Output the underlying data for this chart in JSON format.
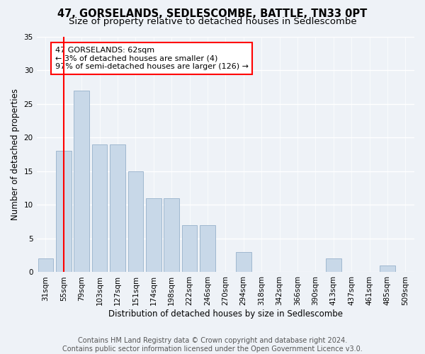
{
  "title": "47, GORSELANDS, SEDLESCOMBE, BATTLE, TN33 0PT",
  "subtitle": "Size of property relative to detached houses in Sedlescombe",
  "xlabel": "Distribution of detached houses by size in Sedlescombe",
  "ylabel": "Number of detached properties",
  "bar_color": "#c8d8e8",
  "bar_edge_color": "#a0b8d0",
  "categories": [
    "31sqm",
    "55sqm",
    "79sqm",
    "103sqm",
    "127sqm",
    "151sqm",
    "174sqm",
    "198sqm",
    "222sqm",
    "246sqm",
    "270sqm",
    "294sqm",
    "318sqm",
    "342sqm",
    "366sqm",
    "390sqm",
    "413sqm",
    "437sqm",
    "461sqm",
    "485sqm",
    "509sqm"
  ],
  "values": [
    2,
    18,
    27,
    19,
    19,
    15,
    11,
    11,
    7,
    7,
    0,
    3,
    0,
    0,
    0,
    0,
    2,
    0,
    0,
    1,
    0
  ],
  "ylim": [
    0,
    35
  ],
  "yticks": [
    0,
    5,
    10,
    15,
    20,
    25,
    30,
    35
  ],
  "annotation_text_line1": "47 GORSELANDS: 62sqm",
  "annotation_text_line2": "← 3% of detached houses are smaller (4)",
  "annotation_text_line3": "97% of semi-detached houses are larger (126) →",
  "annotation_box_color": "white",
  "annotation_box_edge_color": "red",
  "vline_color": "red",
  "vline_x_idx": 1,
  "footnote1": "Contains HM Land Registry data © Crown copyright and database right 2024.",
  "footnote2": "Contains public sector information licensed under the Open Government Licence v3.0.",
  "background_color": "#eef2f7",
  "grid_color": "white",
  "title_fontsize": 10.5,
  "subtitle_fontsize": 9.5,
  "axis_label_fontsize": 8.5,
  "tick_fontsize": 7.5,
  "footnote_fontsize": 7
}
